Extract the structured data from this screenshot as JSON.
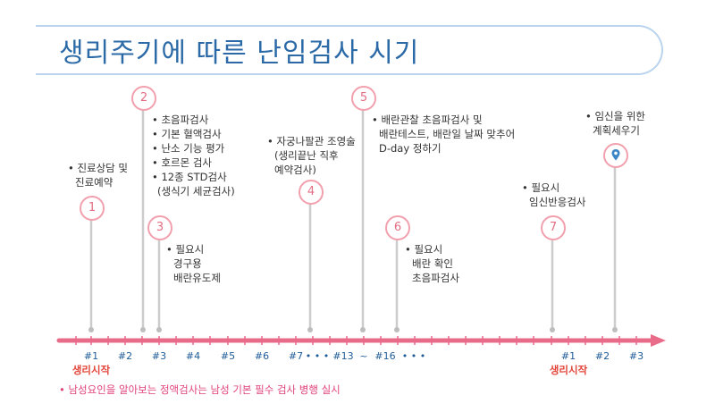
{
  "title": "생리주기에 따른 난임검사 시기",
  "steps": [
    {
      "num": "1",
      "lines": [
        "• 진료상담 및",
        "진료예약"
      ]
    },
    {
      "num": "2",
      "lines": [
        "• 초음파검사",
        "• 기본 혈액검사",
        "• 난소 기능 평가",
        "• 호르몬 검사",
        "• 12종 STD검사",
        "(생식기 세균검사)"
      ]
    },
    {
      "num": "3",
      "lines": [
        "• 필요시",
        "경구용",
        "배란유도제"
      ]
    },
    {
      "num": "4",
      "lines": [
        "• 자궁나팔관 조영술",
        "(생리끝난 직후",
        "예약검사)"
      ]
    },
    {
      "num": "5",
      "lines": [
        "• 배란관찰 초음파검사 및",
        "배란테스트, 배란일 날짜 맞추어",
        "D-day 정하기"
      ]
    },
    {
      "num": "6",
      "lines": [
        "• 필요시",
        "배란 확인",
        "초음파검사"
      ]
    },
    {
      "num": "7",
      "lines": [
        "• 필요시",
        "임신반응검사"
      ]
    },
    {
      "num": "",
      "lines": [
        "• 임신을 위한",
        "계획세우기"
      ]
    }
  ],
  "axis_labels": [
    "#1",
    "#2",
    "#3",
    "#4",
    "#5",
    "#6",
    "#7",
    "• • •",
    "#13",
    "~",
    "#16",
    "• • •",
    "#1",
    "#2",
    "#3"
  ],
  "cycle_start_label": "생리시작",
  "footnote": "• 남성요인을 알아보는 정액검사는 남성 기본 필수 검사 병행 실시",
  "colors": {
    "timeline": "#e96b8a",
    "stem": "#cccccc",
    "bubble_border": "#f2a0ad",
    "title": "#2b6aa7",
    "start": "#e2463a"
  },
  "icons": {
    "pin": "location-pin-icon"
  }
}
